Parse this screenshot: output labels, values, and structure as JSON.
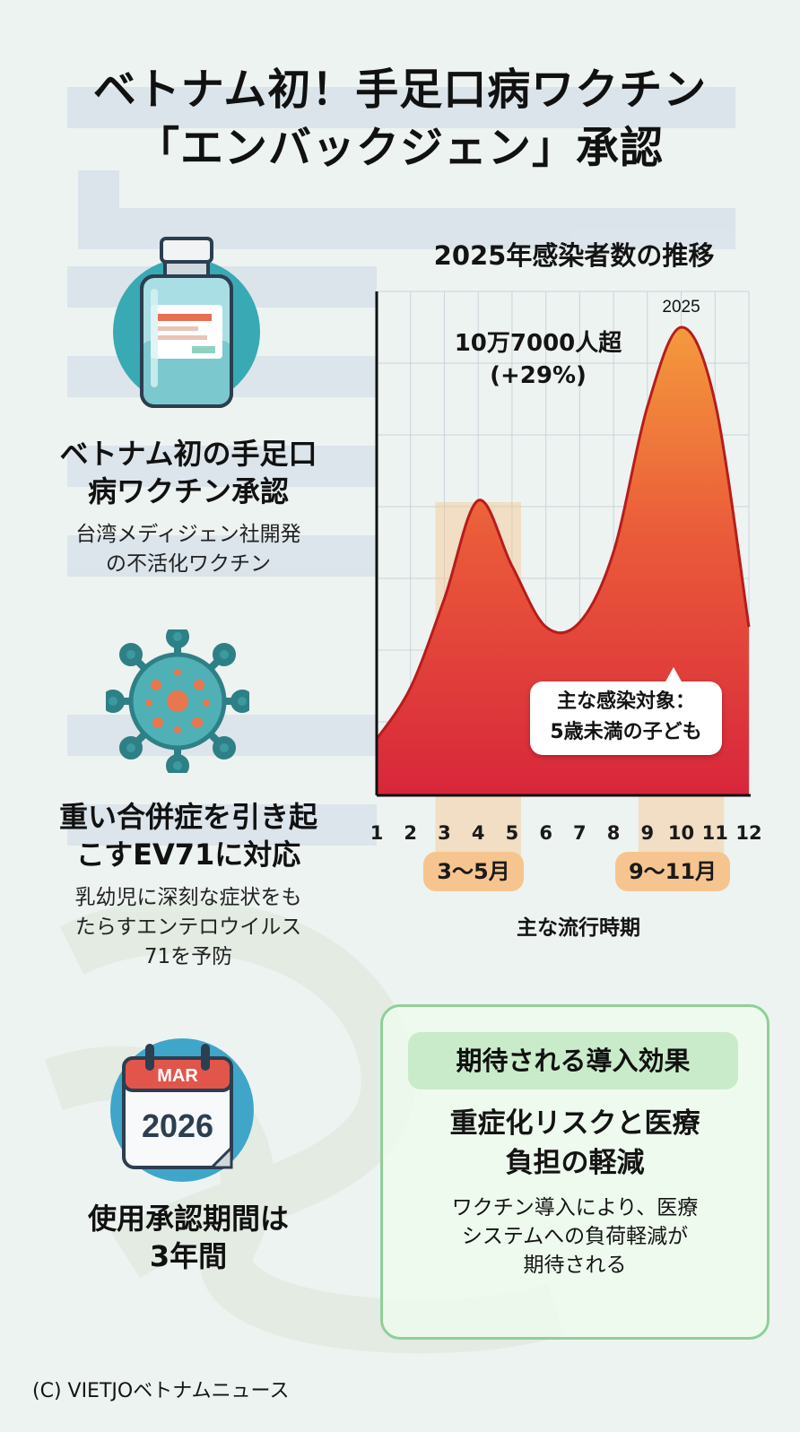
{
  "title": {
    "line1": "ベトナム初！手足口病ワクチン",
    "line2": "「エンバックジェン」承認"
  },
  "features": [
    {
      "icon": "vaccine-vial-icon",
      "heading_lines": [
        "ベトナム初の手足口",
        "病ワクチン承認"
      ],
      "desc_lines": [
        "台湾メディジェン社開発",
        "の不活化ワクチン"
      ]
    },
    {
      "icon": "virus-icon",
      "heading_lines": [
        "重い合併症を引き起",
        "こすEV71に対応"
      ],
      "desc_lines": [
        "乳幼児に深刻な症状をも",
        "たらすエンテロウイルス",
        "71を予防"
      ]
    },
    {
      "icon": "calendar-icon",
      "calendar_month": "MAR",
      "calendar_year": "2026",
      "heading_lines": [
        "使用承認期間は",
        "3年間"
      ]
    }
  ],
  "chart_data": {
    "type": "area",
    "title": "2025年感染者数の推移",
    "series_label": "2025",
    "x": [
      1,
      2,
      3,
      4,
      5,
      6,
      7,
      8,
      9,
      10,
      11,
      12
    ],
    "y": [
      0.12,
      0.23,
      0.42,
      0.63,
      0.49,
      0.36,
      0.37,
      0.52,
      0.83,
      1.0,
      0.84,
      0.36
    ],
    "y_unit": "relative",
    "peak_annotation": [
      "10万7000人超",
      "(+29%)"
    ],
    "callout": [
      "主な感染対象：",
      "5歳未満の子ども"
    ],
    "peak_periods": [
      "3〜5月",
      "9〜11月"
    ],
    "peak_period_caption": "主な流行時期",
    "grid": true,
    "colors": {
      "low": "#d8263b",
      "high": "#f49a3c",
      "line": "#b71c1c"
    }
  },
  "effect": {
    "header": "期待される導入効果",
    "heading_lines": [
      "重症化リスクと医療",
      "負担の軽減"
    ],
    "desc_lines": [
      "ワクチン導入により、医療",
      "システムへの負荷軽減が",
      "期待される"
    ]
  },
  "credit": "(C) VIETJOベトナムニュース"
}
